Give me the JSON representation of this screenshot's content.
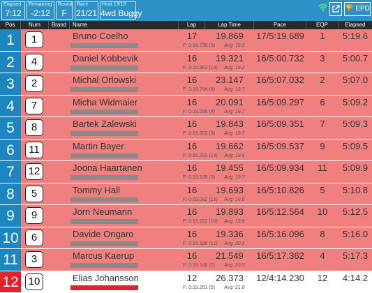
{
  "topbar": {
    "elapsed_label": "Elapsed",
    "elapsed": "7:12",
    "remaining_label": "Remaining",
    "remaining": "-2:12",
    "round_label": "Round",
    "round": "F",
    "race_label": "Race",
    "race": "21/21",
    "heat_label": "Heat 13/13",
    "heat": "4wd Buggy",
    "epd_label": "EPD"
  },
  "columns": {
    "pos": "Pos",
    "num": "Num",
    "brand": "Brand",
    "name": "Name",
    "lap": "Lap",
    "lap_time": "Lap Time",
    "pace": "Pace",
    "eqp": "EQP",
    "elapsed": "Elapsed"
  },
  "colors": {
    "pos_bg": "#1b86c0",
    "row_bg": "#f08080",
    "leader_bg": "#e5202a",
    "highlight_row_bg": "#ffffff",
    "header_bg": "#2a2a2a",
    "topbar_bg": "#2f92c7"
  },
  "rows": [
    {
      "pos": "1",
      "num": "1",
      "name": "Bruno Coelho",
      "lap": "17",
      "lap_time": "19.869",
      "fastest": "F: 0:18.730 (9)",
      "avg": "Avg: 19.2",
      "pace": "17/5:19.689",
      "eqp": "1",
      "elapsed": "5:19.6"
    },
    {
      "pos": "2",
      "num": "4",
      "name": "Daniel Kobbevik",
      "lap": "16",
      "lap_time": "19.321",
      "fastest": "F: 0:18.963 (14)",
      "avg": "Avg: 19.2",
      "pace": "16/5:00.732",
      "eqp": "3",
      "elapsed": "5:00.7"
    },
    {
      "pos": "3",
      "num": "2",
      "name": "Michal Orlowski",
      "lap": "16",
      "lap_time": "23.147",
      "fastest": "F: 0:18.784 (8)",
      "avg": "Avg: 19.7",
      "pace": "16/5:07.032",
      "eqp": "2",
      "elapsed": "5:07.0"
    },
    {
      "pos": "4",
      "num": "7",
      "name": "Micha Widmaier",
      "lap": "16",
      "lap_time": "20.091",
      "fastest": "F: 0:19.299 (8)",
      "avg": "Avg: 19.7",
      "pace": "16/5:09.297",
      "eqp": "6",
      "elapsed": "5:09.2"
    },
    {
      "pos": "5",
      "num": "8",
      "name": "Bartek Zalewski",
      "lap": "16",
      "lap_time": "19.843",
      "fastest": "F: 0:19.303 (9)",
      "avg": "Avg: 19.7",
      "pace": "16/5:09.351",
      "eqp": "7",
      "elapsed": "5:09.3"
    },
    {
      "pos": "6",
      "num": "11",
      "name": "Martin Bayer",
      "lap": "16",
      "lap_time": "19.662",
      "fastest": "F: 0:19.293 (14)",
      "avg": "Avg: 19.6",
      "pace": "16/5:09.537",
      "eqp": "9",
      "elapsed": "5:09.5"
    },
    {
      "pos": "7",
      "num": "12",
      "name": "Joona Haartanen",
      "lap": "16",
      "lap_time": "19.455",
      "fastest": "F: 0:19.105 (5)",
      "avg": "Avg: 19.7",
      "pace": "16/5:09.934",
      "eqp": "11",
      "elapsed": "5:09.9"
    },
    {
      "pos": "8",
      "num": "5",
      "name": "Tommy Hall",
      "lap": "16",
      "lap_time": "19.693",
      "fastest": "F: 0:19.082 (15)",
      "avg": "Avg: 19.8",
      "pace": "16/5:10.826",
      "eqp": "5",
      "elapsed": "5:10.8"
    },
    {
      "pos": "9",
      "num": "9",
      "name": "Jorn Neumann",
      "lap": "16",
      "lap_time": "19.893",
      "fastest": "F: 0:19.222 (10)",
      "avg": "Avg: 19.9",
      "pace": "16/5:12.564",
      "eqp": "10",
      "elapsed": "5:12.5"
    },
    {
      "pos": "10",
      "num": "6",
      "name": "Davide Ongaro",
      "lap": "16",
      "lap_time": "19.336",
      "fastest": "F: 0:19.336 (12)",
      "avg": "Avg: 20.2",
      "pace": "16/5:16.096",
      "eqp": "8",
      "elapsed": "5:16.0"
    },
    {
      "pos": "11",
      "num": "3",
      "name": "Marcus Kaerup",
      "lap": "16",
      "lap_time": "21.549",
      "fastest": "F: 0:19.188 (2)",
      "avg": "Avg: 20.3",
      "pace": "16/5:17.362",
      "eqp": "4",
      "elapsed": "5:17.3"
    },
    {
      "pos": "12",
      "num": "10",
      "name": "Elias Johansson",
      "lap": "12",
      "lap_time": "26.373",
      "fastest": "F: 0:19.251 (5)",
      "avg": "Avg: 21.8",
      "pace": "12/4:14.230",
      "eqp": "12",
      "elapsed": "4:14.2"
    }
  ]
}
